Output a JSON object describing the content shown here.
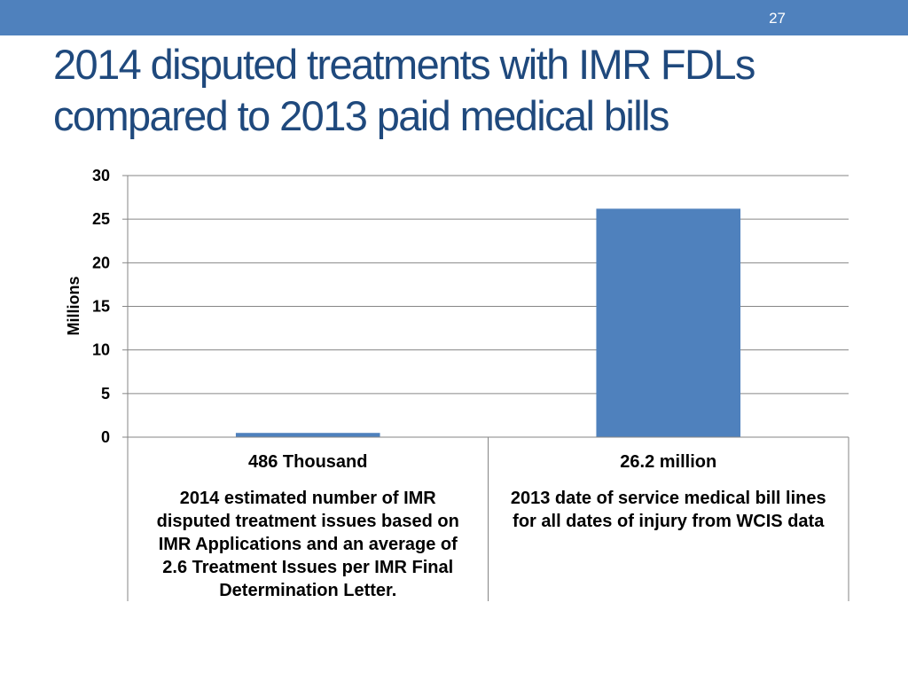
{
  "slide": {
    "number": "27",
    "title_line1": "2014 disputed treatments with IMR FDLs",
    "title_line2": "compared to 2013 paid medical bills"
  },
  "colors": {
    "top_bar": "#4f81bd",
    "title": "#1f497d",
    "bar": "#4f81bd",
    "grid": "#868686"
  },
  "chart_data": {
    "type": "bar",
    "title": "",
    "xlabel": "",
    "ylabel": "Millions",
    "ylim": [
      0,
      30
    ],
    "yticks": [
      0,
      5,
      10,
      15,
      20,
      25,
      30
    ],
    "grid": true,
    "categories": [
      {
        "value_label": "486 Thousand",
        "description_lines": [
          "2014 estimated number of IMR",
          "disputed treatment issues based on",
          "IMR Applications and an average of",
          "2.6 Treatment Issues per IMR Final",
          "Determination Letter."
        ]
      },
      {
        "value_label": "26.2 million",
        "description_lines": [
          "2013 date of service medical bill lines",
          "for all dates of injury from WCIS data"
        ]
      }
    ],
    "values": [
      0.486,
      26.2
    ]
  }
}
